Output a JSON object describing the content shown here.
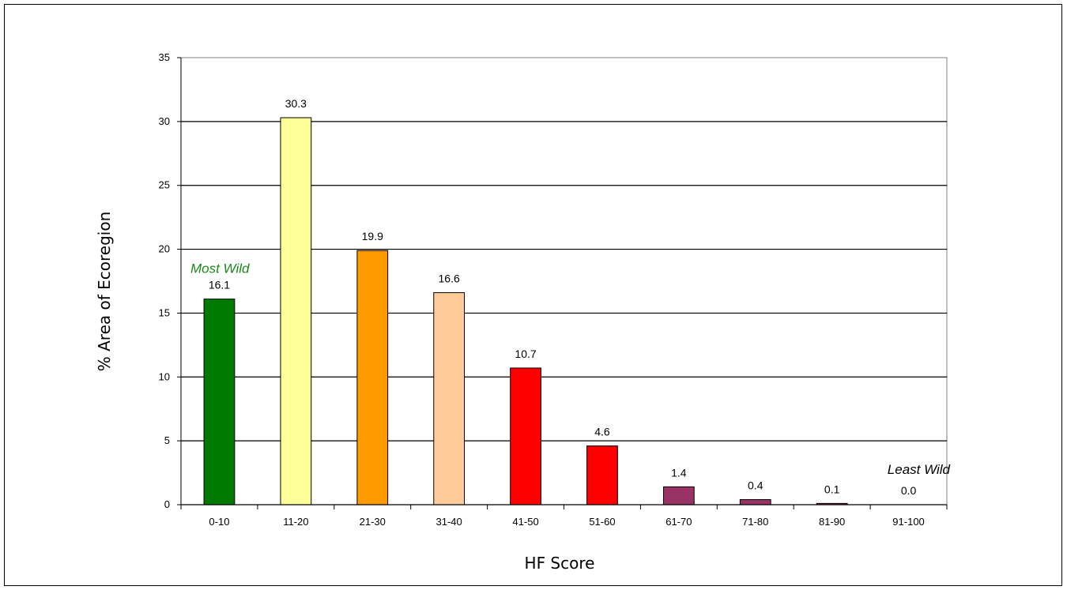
{
  "chart_data": {
    "type": "bar",
    "title": "",
    "xlabel": "HF Score",
    "ylabel": "% Area of Ecoregion",
    "ylim": [
      0,
      35
    ],
    "yticks": [
      0,
      5,
      10,
      15,
      20,
      25,
      30,
      35
    ],
    "grid": true,
    "categories": [
      "0-10",
      "11-20",
      "21-30",
      "31-40",
      "41-50",
      "51-60",
      "61-70",
      "71-80",
      "81-90",
      "91-100"
    ],
    "values": [
      16.1,
      30.3,
      19.9,
      16.6,
      10.7,
      4.6,
      1.4,
      0.4,
      0.1,
      0.0
    ],
    "data_labels": [
      "16.1",
      "30.3",
      "19.9",
      "16.6",
      "10.7",
      "4.6",
      "1.4",
      "0.4",
      "0.1",
      "0.0"
    ],
    "colors": [
      "#007a00",
      "#ffff99",
      "#ff9900",
      "#ffcc99",
      "#ff0000",
      "#ff0000",
      "#993366",
      "#993366",
      "#993366",
      "#993366"
    ],
    "annotations": [
      {
        "text": "Most Wild",
        "category": "0-10",
        "color": "#1a8a1a"
      },
      {
        "text": "Least Wild",
        "category": "91-100",
        "color": "#000000"
      }
    ]
  }
}
